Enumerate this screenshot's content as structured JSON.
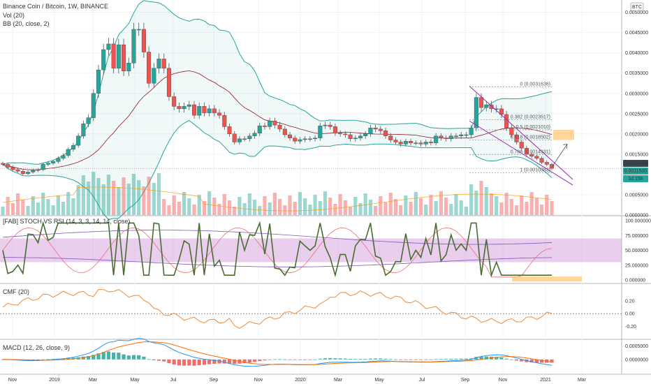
{
  "header": {
    "symbol": "Binance Coin / Bitcoin, 1W, BINANCE",
    "vol": "Vol (20)",
    "bb": "BB (20, close, 2)",
    "currency_badge": "BTC"
  },
  "panes": {
    "stoch": "[FAB] STOCH VS RSI (14, 3, 3, 14, 14, close)",
    "cmf": "CMF (20)",
    "macd": "MACD (12, 26, close, 9)"
  },
  "price_badges": {
    "top": "0.0012344",
    "mid": "0.0011500",
    "timer": "1d 15h"
  },
  "colors": {
    "up": "#26a69a",
    "down": "#ef5350",
    "bb_band": "#26a69a",
    "bb_basis": "#8b1a2b",
    "fib_zone": "#ffb74d",
    "wedge": "#9c27b0",
    "stoch_fill": "#ce93d8"
  },
  "chart_data": {
    "type": "candlestick",
    "x_ticks": [
      "Nov",
      "2019",
      "Mar",
      "May",
      "Jul",
      "Sep",
      "Nov",
      "2020",
      "Mar",
      "May",
      "Jul",
      "Sep",
      "Nov",
      "2021",
      "Mar"
    ],
    "main": {
      "y_ticks": [
        "0.0050000",
        "0.0045000",
        "0.0040000",
        "0.0035000",
        "0.0030000",
        "0.0025000",
        "0.0020000",
        "0.0015000",
        "0.0005000",
        "0.0000000"
      ],
      "ylim": [
        0.0,
        0.0052
      ],
      "closes": [
        0.00125,
        0.00118,
        0.00112,
        0.00108,
        0.00102,
        0.00106,
        0.0011,
        0.00112,
        0.00125,
        0.00128,
        0.00132,
        0.0014,
        0.00147,
        0.00162,
        0.00172,
        0.00195,
        0.00225,
        0.0024,
        0.003,
        0.00358,
        0.00408,
        0.00422,
        0.00362,
        0.0042,
        0.00355,
        0.00375,
        0.00458,
        0.00458,
        0.00402,
        0.00325,
        0.00362,
        0.00385,
        0.00362,
        0.00292,
        0.00268,
        0.00262,
        0.00268,
        0.00272,
        0.00246,
        0.00268,
        0.00252,
        0.00262,
        0.00252,
        0.00246,
        0.00218,
        0.002,
        0.0018,
        0.00188,
        0.00188,
        0.00195,
        0.00202,
        0.0022,
        0.00218,
        0.00232,
        0.00222,
        0.00212,
        0.00198,
        0.0019,
        0.00182,
        0.00186,
        0.00188,
        0.00188,
        0.0019,
        0.0022,
        0.00222,
        0.00218,
        0.00202,
        0.002,
        0.00198,
        0.00188,
        0.0019,
        0.00195,
        0.002,
        0.00215,
        0.00212,
        0.00208,
        0.00195,
        0.00185,
        0.0018,
        0.00175,
        0.00182,
        0.00178,
        0.00178,
        0.00175,
        0.0018,
        0.00178,
        0.00195,
        0.0019,
        0.00188,
        0.00195,
        0.00195,
        0.00198,
        0.00198,
        0.00215,
        0.0029,
        0.00265,
        0.00272,
        0.00262,
        0.00262,
        0.00248,
        0.00215,
        0.00198,
        0.0018,
        0.00165,
        0.0015,
        0.00145,
        0.0014,
        0.0013,
        0.00125,
        0.00115
      ]
    },
    "stoch_vs_rsi": {
      "y_ticks": [
        "100.000000",
        "75.000000",
        "50.000000",
        "25.000000",
        "0.000000"
      ],
      "ylim": [
        0,
        100
      ],
      "band": [
        30,
        70
      ]
    },
    "cmf": {
      "y_ticks": [
        "0.20",
        "0.00",
        "-0.20"
      ],
      "ylim": [
        -0.35,
        0.42
      ]
    },
    "macd": {
      "y_ticks": [
        "0.0005000",
        "0.0000000"
      ],
      "ylim": [
        -0.00045,
        0.00065
      ]
    },
    "fibonacci": [
      {
        "label": "0 (0.0031636)",
        "value": 0.0031636
      },
      {
        "label": "0.382 (0.0023517)",
        "value": 0.0023517
      },
      {
        "label": "0.5 (0.0021010)",
        "value": 0.002101
      },
      {
        "label": "0.618 (0.0018502)",
        "value": 0.0018502
      },
      {
        "label": "0.786 (0.0014931)",
        "value": 0.0014931
      },
      {
        "label": "1 (0.0010383)",
        "value": 0.0010383
      }
    ]
  }
}
